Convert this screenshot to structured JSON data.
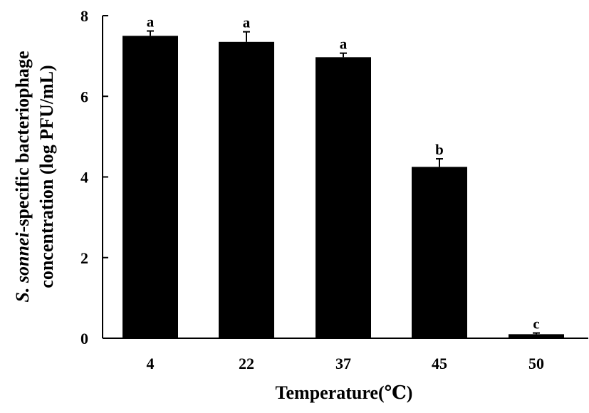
{
  "chart_data": {
    "type": "bar",
    "categories": [
      "4",
      "22",
      "37",
      "45",
      "50"
    ],
    "values": [
      7.5,
      7.35,
      6.97,
      4.25,
      0.1
    ],
    "errors": [
      0.12,
      0.25,
      0.1,
      0.2,
      0.03
    ],
    "significance": [
      "a",
      "a",
      "a",
      "b",
      "c"
    ],
    "xlabel": "Temperature(℃)",
    "ylabel_line1_prefix": "S. sonnei",
    "ylabel_line1_suffix": "-specific bacteriophage",
    "ylabel_line2": "concentration (log PFU/mL)",
    "ylim": [
      0,
      8
    ],
    "yticks": [
      "0",
      "2",
      "4",
      "6",
      "8"
    ],
    "grid": false,
    "bar_color": "#000000"
  }
}
